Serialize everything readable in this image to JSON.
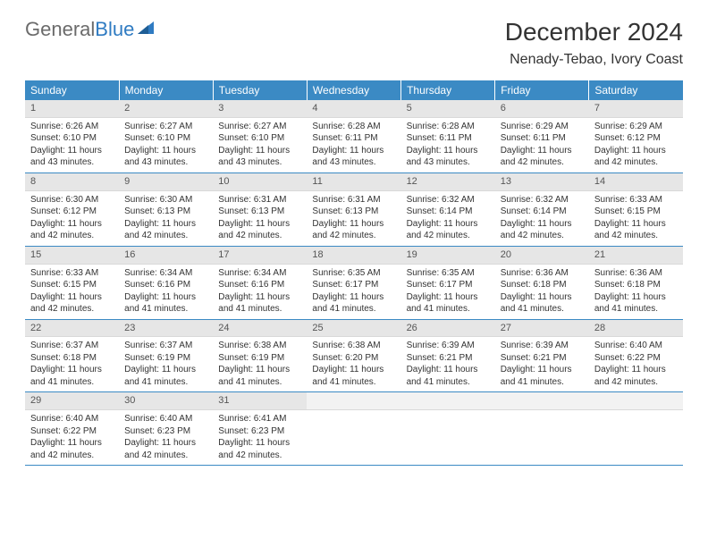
{
  "brand": {
    "first": "General",
    "second": "Blue"
  },
  "title": "December 2024",
  "location": "Nenady-Tebao, Ivory Coast",
  "colors": {
    "header_bg": "#3b8ac4",
    "header_text": "#ffffff",
    "row_border": "#3b8ac4",
    "daynum_bg": "#e6e6e6",
    "text": "#333333",
    "brand_gray": "#6b6b6b",
    "brand_blue": "#2f7bc2"
  },
  "weekdays": [
    "Sunday",
    "Monday",
    "Tuesday",
    "Wednesday",
    "Thursday",
    "Friday",
    "Saturday"
  ],
  "days": [
    {
      "n": 1,
      "sr": "6:26 AM",
      "ss": "6:10 PM",
      "dl": "11 hours and 43 minutes."
    },
    {
      "n": 2,
      "sr": "6:27 AM",
      "ss": "6:10 PM",
      "dl": "11 hours and 43 minutes."
    },
    {
      "n": 3,
      "sr": "6:27 AM",
      "ss": "6:10 PM",
      "dl": "11 hours and 43 minutes."
    },
    {
      "n": 4,
      "sr": "6:28 AM",
      "ss": "6:11 PM",
      "dl": "11 hours and 43 minutes."
    },
    {
      "n": 5,
      "sr": "6:28 AM",
      "ss": "6:11 PM",
      "dl": "11 hours and 43 minutes."
    },
    {
      "n": 6,
      "sr": "6:29 AM",
      "ss": "6:11 PM",
      "dl": "11 hours and 42 minutes."
    },
    {
      "n": 7,
      "sr": "6:29 AM",
      "ss": "6:12 PM",
      "dl": "11 hours and 42 minutes."
    },
    {
      "n": 8,
      "sr": "6:30 AM",
      "ss": "6:12 PM",
      "dl": "11 hours and 42 minutes."
    },
    {
      "n": 9,
      "sr": "6:30 AM",
      "ss": "6:13 PM",
      "dl": "11 hours and 42 minutes."
    },
    {
      "n": 10,
      "sr": "6:31 AM",
      "ss": "6:13 PM",
      "dl": "11 hours and 42 minutes."
    },
    {
      "n": 11,
      "sr": "6:31 AM",
      "ss": "6:13 PM",
      "dl": "11 hours and 42 minutes."
    },
    {
      "n": 12,
      "sr": "6:32 AM",
      "ss": "6:14 PM",
      "dl": "11 hours and 42 minutes."
    },
    {
      "n": 13,
      "sr": "6:32 AM",
      "ss": "6:14 PM",
      "dl": "11 hours and 42 minutes."
    },
    {
      "n": 14,
      "sr": "6:33 AM",
      "ss": "6:15 PM",
      "dl": "11 hours and 42 minutes."
    },
    {
      "n": 15,
      "sr": "6:33 AM",
      "ss": "6:15 PM",
      "dl": "11 hours and 42 minutes."
    },
    {
      "n": 16,
      "sr": "6:34 AM",
      "ss": "6:16 PM",
      "dl": "11 hours and 41 minutes."
    },
    {
      "n": 17,
      "sr": "6:34 AM",
      "ss": "6:16 PM",
      "dl": "11 hours and 41 minutes."
    },
    {
      "n": 18,
      "sr": "6:35 AM",
      "ss": "6:17 PM",
      "dl": "11 hours and 41 minutes."
    },
    {
      "n": 19,
      "sr": "6:35 AM",
      "ss": "6:17 PM",
      "dl": "11 hours and 41 minutes."
    },
    {
      "n": 20,
      "sr": "6:36 AM",
      "ss": "6:18 PM",
      "dl": "11 hours and 41 minutes."
    },
    {
      "n": 21,
      "sr": "6:36 AM",
      "ss": "6:18 PM",
      "dl": "11 hours and 41 minutes."
    },
    {
      "n": 22,
      "sr": "6:37 AM",
      "ss": "6:18 PM",
      "dl": "11 hours and 41 minutes."
    },
    {
      "n": 23,
      "sr": "6:37 AM",
      "ss": "6:19 PM",
      "dl": "11 hours and 41 minutes."
    },
    {
      "n": 24,
      "sr": "6:38 AM",
      "ss": "6:19 PM",
      "dl": "11 hours and 41 minutes."
    },
    {
      "n": 25,
      "sr": "6:38 AM",
      "ss": "6:20 PM",
      "dl": "11 hours and 41 minutes."
    },
    {
      "n": 26,
      "sr": "6:39 AM",
      "ss": "6:21 PM",
      "dl": "11 hours and 41 minutes."
    },
    {
      "n": 27,
      "sr": "6:39 AM",
      "ss": "6:21 PM",
      "dl": "11 hours and 41 minutes."
    },
    {
      "n": 28,
      "sr": "6:40 AM",
      "ss": "6:22 PM",
      "dl": "11 hours and 42 minutes."
    },
    {
      "n": 29,
      "sr": "6:40 AM",
      "ss": "6:22 PM",
      "dl": "11 hours and 42 minutes."
    },
    {
      "n": 30,
      "sr": "6:40 AM",
      "ss": "6:23 PM",
      "dl": "11 hours and 42 minutes."
    },
    {
      "n": 31,
      "sr": "6:41 AM",
      "ss": "6:23 PM",
      "dl": "11 hours and 42 minutes."
    }
  ],
  "labels": {
    "sunrise_prefix": "Sunrise: ",
    "sunset_prefix": "Sunset: ",
    "daylight_prefix": "Daylight: "
  },
  "layout": {
    "cols": 7,
    "rows": 5,
    "start_weekday": 0,
    "trailing_blanks": 4
  }
}
